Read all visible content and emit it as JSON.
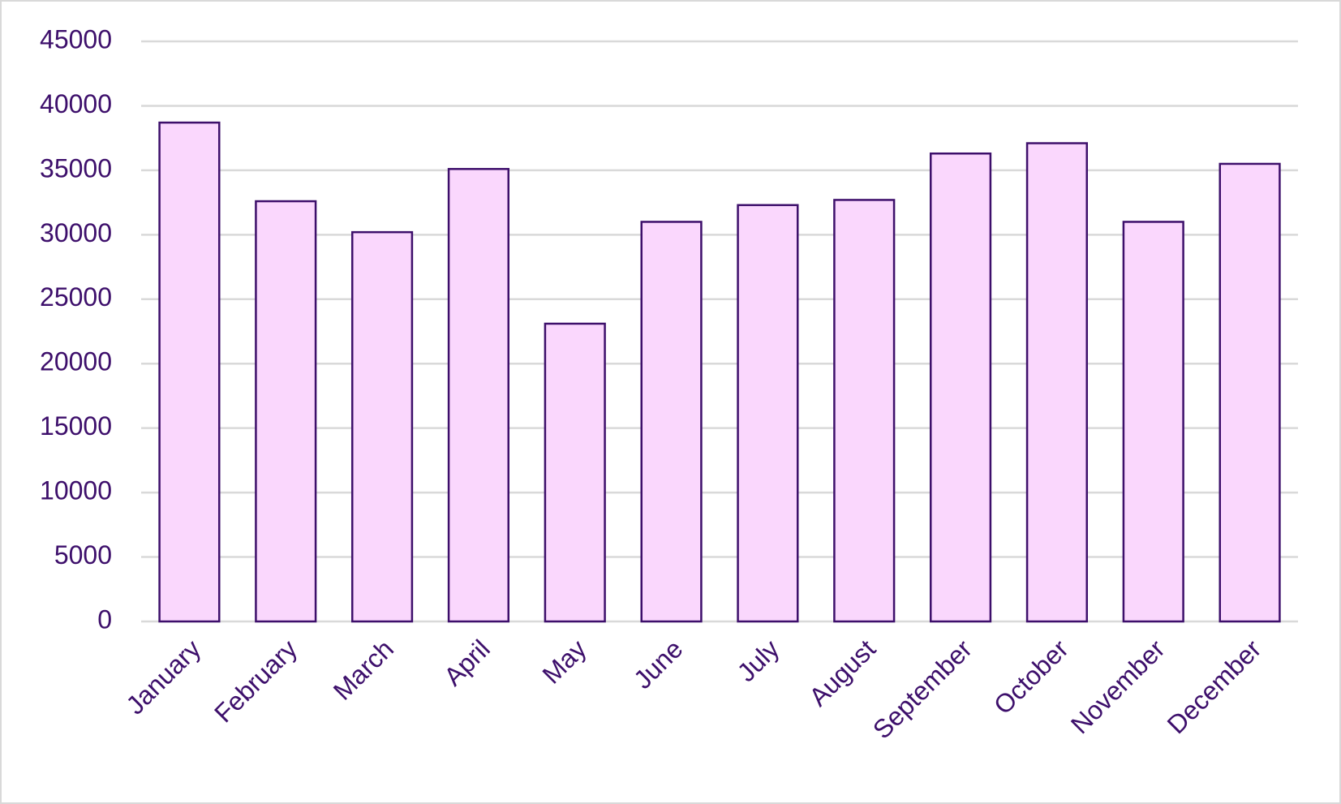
{
  "chart_data": {
    "type": "bar",
    "categories": [
      "January",
      "February",
      "March",
      "April",
      "May",
      "June",
      "July",
      "August",
      "September",
      "October",
      "November",
      "December"
    ],
    "values": [
      38700,
      32600,
      30200,
      35100,
      23100,
      31000,
      32300,
      32700,
      36300,
      37100,
      31000,
      35500
    ],
    "color": "#fad7fd",
    "edge_color": "#3d0f6b",
    "ylim": [
      0,
      45000
    ],
    "yticks": [
      0,
      5000,
      10000,
      15000,
      20000,
      25000,
      30000,
      35000,
      40000,
      45000
    ],
    "grid": true
  }
}
